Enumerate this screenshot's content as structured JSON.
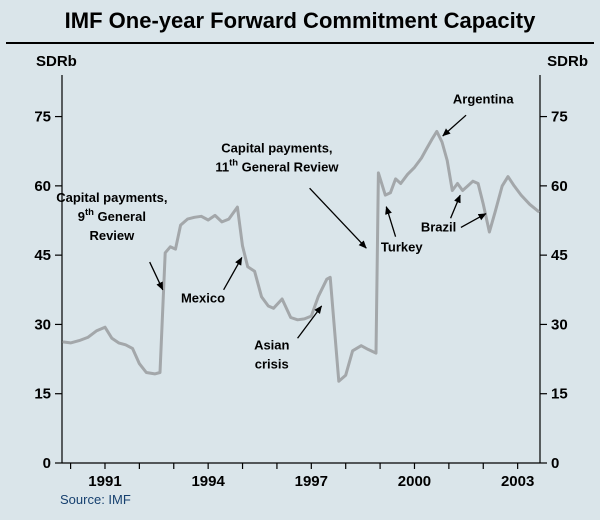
{
  "page": {
    "title": "IMF One-year Forward Commitment Capacity",
    "unit_left": "SDRb",
    "unit_right": "SDRb",
    "source": "Source: IMF"
  },
  "chart_data": {
    "type": "line",
    "title": "IMF One-year Forward Commitment Capacity",
    "ylabel_left": "SDRb",
    "ylabel_right": "SDRb",
    "source": "Source: IMF",
    "grid": false,
    "legend": "none",
    "line_color": "#a3a7aa",
    "x_range": [
      1989.75,
      2003.65
    ],
    "y_range": [
      0,
      84
    ],
    "y_ticks": [
      0,
      15,
      30,
      45,
      60,
      75
    ],
    "x_minor_ticks": [
      1990,
      1991,
      1992,
      1993,
      1994,
      1995,
      1996,
      1997,
      1998,
      1999,
      2000,
      2001,
      2002,
      2003
    ],
    "x_tick_labels": [
      {
        "pos": 1991,
        "label": "1991"
      },
      {
        "pos": 1994,
        "label": "1994"
      },
      {
        "pos": 1997,
        "label": "1997"
      },
      {
        "pos": 2000,
        "label": "2000"
      },
      {
        "pos": 2003,
        "label": "2003"
      }
    ],
    "series": [
      {
        "name": "One-year forward commitment capacity (SDRb)",
        "points": [
          [
            1989.8,
            26.2
          ],
          [
            1990.0,
            26.0
          ],
          [
            1990.25,
            26.5
          ],
          [
            1990.5,
            27.2
          ],
          [
            1990.75,
            28.6
          ],
          [
            1991.0,
            29.4
          ],
          [
            1991.2,
            27.0
          ],
          [
            1991.4,
            26.0
          ],
          [
            1991.6,
            25.6
          ],
          [
            1991.8,
            24.8
          ],
          [
            1992.0,
            21.5
          ],
          [
            1992.2,
            19.6
          ],
          [
            1992.45,
            19.3
          ],
          [
            1992.6,
            19.6
          ],
          [
            1992.75,
            45.5
          ],
          [
            1992.9,
            46.8
          ],
          [
            1993.05,
            46.3
          ],
          [
            1993.2,
            51.5
          ],
          [
            1993.4,
            52.8
          ],
          [
            1993.6,
            53.2
          ],
          [
            1993.8,
            53.4
          ],
          [
            1994.0,
            52.6
          ],
          [
            1994.2,
            53.6
          ],
          [
            1994.4,
            52.2
          ],
          [
            1994.6,
            52.8
          ],
          [
            1994.85,
            55.4
          ],
          [
            1995.0,
            47.0
          ],
          [
            1995.15,
            42.5
          ],
          [
            1995.35,
            41.5
          ],
          [
            1995.55,
            36.0
          ],
          [
            1995.75,
            34.0
          ],
          [
            1995.9,
            33.5
          ],
          [
            1996.15,
            35.5
          ],
          [
            1996.4,
            31.5
          ],
          [
            1996.6,
            31.0
          ],
          [
            1996.8,
            31.2
          ],
          [
            1997.0,
            31.8
          ],
          [
            1997.2,
            36.0
          ],
          [
            1997.45,
            39.8
          ],
          [
            1997.55,
            40.2
          ],
          [
            1997.8,
            17.7
          ],
          [
            1998.0,
            19.0
          ],
          [
            1998.2,
            24.3
          ],
          [
            1998.45,
            25.4
          ],
          [
            1998.65,
            24.6
          ],
          [
            1998.88,
            23.8
          ],
          [
            1998.95,
            62.8
          ],
          [
            1999.15,
            58.0
          ],
          [
            1999.3,
            58.5
          ],
          [
            1999.45,
            61.5
          ],
          [
            1999.6,
            60.5
          ],
          [
            1999.8,
            62.5
          ],
          [
            2000.0,
            64.0
          ],
          [
            2000.2,
            66.0
          ],
          [
            2000.35,
            68.0
          ],
          [
            2000.5,
            70.0
          ],
          [
            2000.65,
            71.8
          ],
          [
            2000.8,
            69.5
          ],
          [
            2000.95,
            65.5
          ],
          [
            2001.1,
            59.0
          ],
          [
            2001.25,
            60.5
          ],
          [
            2001.4,
            59.0
          ],
          [
            2001.55,
            60.0
          ],
          [
            2001.7,
            61.0
          ],
          [
            2001.85,
            60.5
          ],
          [
            2002.0,
            56.0
          ],
          [
            2002.18,
            50.0
          ],
          [
            2002.35,
            54.5
          ],
          [
            2002.55,
            60.0
          ],
          [
            2002.72,
            62.0
          ],
          [
            2002.9,
            60.0
          ],
          [
            2003.1,
            58.0
          ],
          [
            2003.35,
            56.0
          ],
          [
            2003.6,
            54.5
          ]
        ]
      }
    ],
    "annotations": [
      {
        "id": "capital-payments-9th",
        "lines": [
          "Capital payments,",
          "9{th} General",
          "Review"
        ],
        "x": 1991.2,
        "y": 56.5,
        "arrows": [
          {
            "x1": 1992.3,
            "y1": 43.5,
            "x2": 1992.68,
            "y2": 37.5
          }
        ]
      },
      {
        "id": "mexico",
        "lines": [
          "Mexico"
        ],
        "x": 1993.85,
        "y": 34.8,
        "arrows": [
          {
            "x1": 1994.45,
            "y1": 37.5,
            "x2": 1994.98,
            "y2": 44.5
          }
        ]
      },
      {
        "id": "capital-payments-11th",
        "lines": [
          "Capital payments,",
          "11{th} General Review"
        ],
        "x": 1996.0,
        "y": 67.2,
        "arrows": [
          {
            "x1": 1996.95,
            "y1": 59.5,
            "x2": 1998.6,
            "y2": 46.5
          }
        ]
      },
      {
        "id": "asian-crisis",
        "lines": [
          "Asian",
          "crisis"
        ],
        "x": 1995.85,
        "y": 24.6,
        "arrows": [
          {
            "x1": 1996.6,
            "y1": 27.0,
            "x2": 1997.3,
            "y2": 34.0
          }
        ]
      },
      {
        "id": "turkey",
        "lines": [
          "Turkey"
        ],
        "x": 1999.63,
        "y": 45.8,
        "arrows": [
          {
            "x1": 1999.45,
            "y1": 49.0,
            "x2": 1999.18,
            "y2": 55.5
          }
        ]
      },
      {
        "id": "brazil",
        "lines": [
          "Brazil"
        ],
        "x": 2000.7,
        "y": 50.1,
        "arrows": [
          {
            "x1": 2001.05,
            "y1": 53.0,
            "x2": 2001.33,
            "y2": 58.0
          },
          {
            "x1": 2001.35,
            "y1": 51.0,
            "x2": 2002.08,
            "y2": 54.0
          }
        ]
      },
      {
        "id": "argentina",
        "lines": [
          "Argentina"
        ],
        "x": 2002.0,
        "y": 77.8,
        "arrows": [
          {
            "x1": 2001.5,
            "y1": 75.3,
            "x2": 2000.82,
            "y2": 70.8
          }
        ]
      }
    ]
  }
}
